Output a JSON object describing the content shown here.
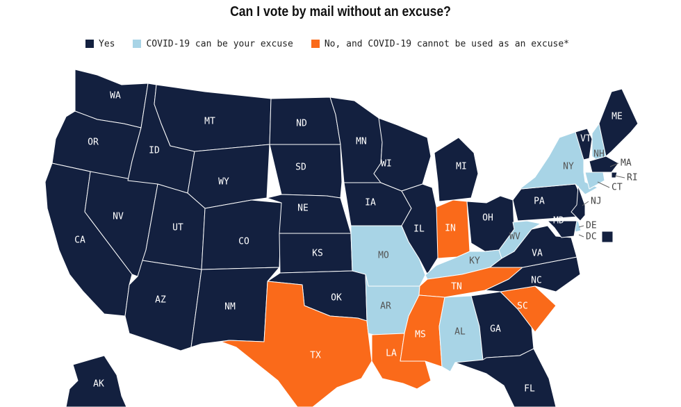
{
  "title": "Can I vote by mail without an excuse?",
  "colors": {
    "yes": "#13203f",
    "covid": "#a8d4e6",
    "no": "#fa6a1a",
    "label_on_dark": "#ffffff",
    "label_on_light": "#555555"
  },
  "legend": [
    {
      "key": "yes",
      "label": "Yes"
    },
    {
      "key": "covid",
      "label": "COVID-19 can be your excuse"
    },
    {
      "key": "no",
      "label": "No, and COVID-19 cannot be used as an excuse*"
    }
  ],
  "states": [
    {
      "abbr": "WA",
      "category": "yes"
    },
    {
      "abbr": "OR",
      "category": "yes"
    },
    {
      "abbr": "CA",
      "category": "yes"
    },
    {
      "abbr": "NV",
      "category": "yes"
    },
    {
      "abbr": "ID",
      "category": "yes"
    },
    {
      "abbr": "MT",
      "category": "yes"
    },
    {
      "abbr": "WY",
      "category": "yes"
    },
    {
      "abbr": "UT",
      "category": "yes"
    },
    {
      "abbr": "AZ",
      "category": "yes"
    },
    {
      "abbr": "CO",
      "category": "yes"
    },
    {
      "abbr": "NM",
      "category": "yes"
    },
    {
      "abbr": "ND",
      "category": "yes"
    },
    {
      "abbr": "SD",
      "category": "yes"
    },
    {
      "abbr": "NE",
      "category": "yes"
    },
    {
      "abbr": "KS",
      "category": "yes"
    },
    {
      "abbr": "OK",
      "category": "yes"
    },
    {
      "abbr": "TX",
      "category": "no"
    },
    {
      "abbr": "MN",
      "category": "yes"
    },
    {
      "abbr": "IA",
      "category": "yes"
    },
    {
      "abbr": "MO",
      "category": "covid"
    },
    {
      "abbr": "AR",
      "category": "covid"
    },
    {
      "abbr": "LA",
      "category": "no"
    },
    {
      "abbr": "WI",
      "category": "yes"
    },
    {
      "abbr": "IL",
      "category": "yes"
    },
    {
      "abbr": "MI",
      "category": "yes"
    },
    {
      "abbr": "IN",
      "category": "no"
    },
    {
      "abbr": "OH",
      "category": "yes"
    },
    {
      "abbr": "KY",
      "category": "covid"
    },
    {
      "abbr": "TN",
      "category": "no"
    },
    {
      "abbr": "MS",
      "category": "no"
    },
    {
      "abbr": "AL",
      "category": "covid"
    },
    {
      "abbr": "GA",
      "category": "yes"
    },
    {
      "abbr": "FL",
      "category": "yes"
    },
    {
      "abbr": "SC",
      "category": "no"
    },
    {
      "abbr": "NC",
      "category": "yes"
    },
    {
      "abbr": "VA",
      "category": "yes"
    },
    {
      "abbr": "WV",
      "category": "covid"
    },
    {
      "abbr": "PA",
      "category": "yes"
    },
    {
      "abbr": "NY",
      "category": "covid"
    },
    {
      "abbr": "VT",
      "category": "yes"
    },
    {
      "abbr": "NH",
      "category": "covid"
    },
    {
      "abbr": "ME",
      "category": "yes"
    },
    {
      "abbr": "MA",
      "category": "yes"
    },
    {
      "abbr": "RI",
      "category": "yes"
    },
    {
      "abbr": "CT",
      "category": "covid"
    },
    {
      "abbr": "NJ",
      "category": "yes"
    },
    {
      "abbr": "DE",
      "category": "covid"
    },
    {
      "abbr": "MD",
      "category": "yes"
    },
    {
      "abbr": "DC",
      "category": "yes"
    },
    {
      "abbr": "AK",
      "category": "yes"
    }
  ]
}
